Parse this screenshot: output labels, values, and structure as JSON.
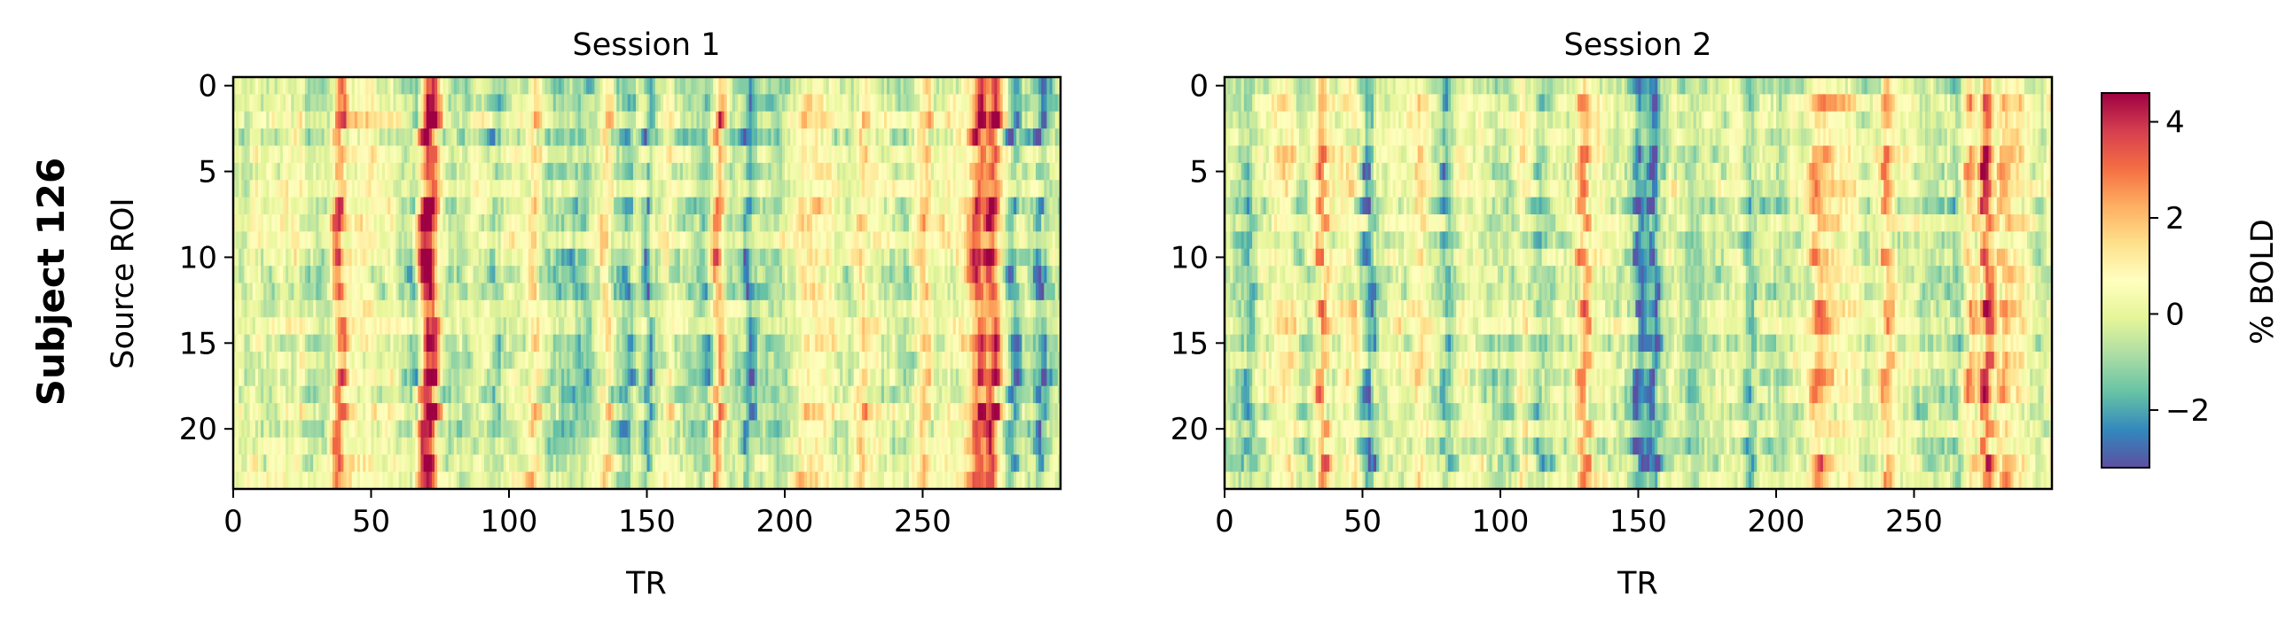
{
  "figure": {
    "row_label": "Subject 126"
  },
  "chart_data": [
    {
      "type": "heatmap",
      "title": "Session 1",
      "xlabel": "TR",
      "ylabel": "Source ROI",
      "n_rows": 24,
      "n_cols": 300,
      "xlim": [
        0,
        300
      ],
      "ylim": [
        23.5,
        -0.5
      ],
      "x_ticks": [
        0,
        50,
        100,
        150,
        200,
        250
      ],
      "y_ticks": [
        0,
        5,
        10,
        15,
        20
      ],
      "seed": 126,
      "peaks": [
        [
          38,
          2.6
        ],
        [
          69,
          3.6
        ],
        [
          72,
          3.0
        ],
        [
          108,
          2.2
        ],
        [
          134,
          1.8
        ],
        [
          142,
          -2.0
        ],
        [
          150,
          -2.6
        ],
        [
          176,
          2.6
        ],
        [
          186,
          -2.2
        ],
        [
          228,
          2.0
        ],
        [
          250,
          1.8
        ],
        [
          270,
          2.8
        ],
        [
          275,
          2.4
        ],
        [
          282,
          -1.8
        ],
        [
          292,
          -1.5
        ]
      ]
    },
    {
      "type": "heatmap",
      "title": "Session 2",
      "xlabel": "TR",
      "ylabel": "",
      "n_rows": 24,
      "n_cols": 300,
      "xlim": [
        0,
        300
      ],
      "ylim": [
        23.5,
        -0.5
      ],
      "x_ticks": [
        0,
        50,
        100,
        150,
        200,
        250
      ],
      "y_ticks": [
        0,
        5,
        10,
        15,
        20
      ],
      "seed": 261,
      "peaks": [
        [
          35,
          2.4
        ],
        [
          52,
          -2.2
        ],
        [
          70,
          1.8
        ],
        [
          80,
          -1.8
        ],
        [
          130,
          2.2
        ],
        [
          150,
          -2.8
        ],
        [
          155,
          -2.2
        ],
        [
          190,
          -1.8
        ],
        [
          215,
          1.5
        ],
        [
          240,
          2.2
        ],
        [
          270,
          2.6
        ],
        [
          276,
          3.4
        ],
        [
          282,
          1.8
        ]
      ]
    }
  ],
  "colorbar": {
    "label": "% BOLD",
    "colormap": "Spectral_r",
    "vmin": -3.2,
    "vmax": 4.6,
    "ticks": [
      -2,
      0,
      2,
      4
    ],
    "tick_labels": [
      "−2",
      "0",
      "2",
      "4"
    ],
    "colors": [
      "#5e4fa2",
      "#3288bd",
      "#66c2a5",
      "#abdda4",
      "#e6f598",
      "#ffffbf",
      "#fee08b",
      "#fdae61",
      "#f46d43",
      "#d53e4f",
      "#9e0142"
    ]
  }
}
